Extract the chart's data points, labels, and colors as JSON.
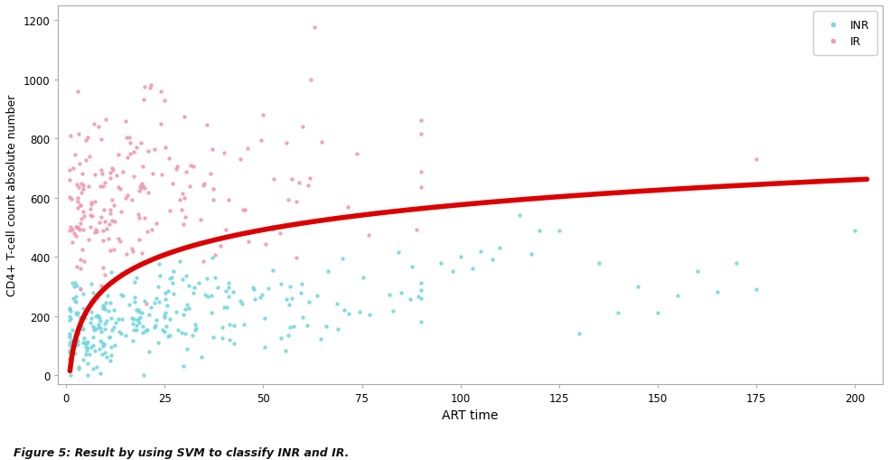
{
  "title": "",
  "xlabel": "ART time",
  "ylabel": "CD4+ T-cell count absolute number",
  "xlim": [
    -2,
    207
  ],
  "ylim": [
    -30,
    1250
  ],
  "xticks": [
    0,
    25,
    50,
    75,
    100,
    125,
    150,
    175,
    200
  ],
  "yticks": [
    0,
    200,
    400,
    600,
    800,
    1000,
    1200
  ],
  "inr_color": "#76d7e0",
  "ir_color": "#f09ab0",
  "curve_color": "#dd0000",
  "background_color": "#ffffff",
  "figure_caption": "Figure 5: Result by using SVM to classify INR and IR.",
  "legend_labels": [
    "INR",
    "IR"
  ],
  "curve_log_A": 95.0,
  "curve_log_B": 115.0,
  "random_seed": 7
}
